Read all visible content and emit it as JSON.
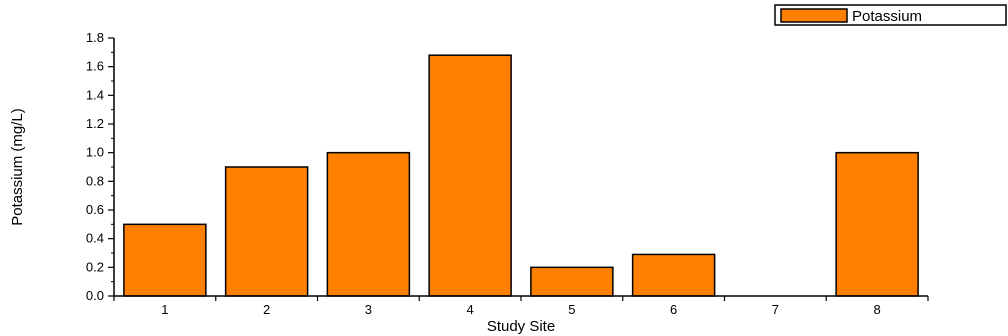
{
  "chart_data": {
    "type": "bar",
    "categories": [
      "1",
      "2",
      "3",
      "4",
      "5",
      "6",
      "7",
      "8"
    ],
    "series": [
      {
        "name": "Potassium",
        "values": [
          0.5,
          0.9,
          1.0,
          1.68,
          0.2,
          0.29,
          0.0,
          1.0
        ]
      }
    ],
    "xlabel": "Study Site",
    "ylabel": "Potassium (mg/L)",
    "ylim": [
      0.0,
      1.8
    ],
    "yticks": [
      "0.0",
      "0.2",
      "0.4",
      "0.6",
      "0.8",
      "1.0",
      "1.2",
      "1.4",
      "1.6",
      "1.8"
    ],
    "grid": false,
    "legend_position": "top-right",
    "colors": {
      "bar_fill": "#ff8000",
      "bar_stroke": "#000000"
    }
  }
}
